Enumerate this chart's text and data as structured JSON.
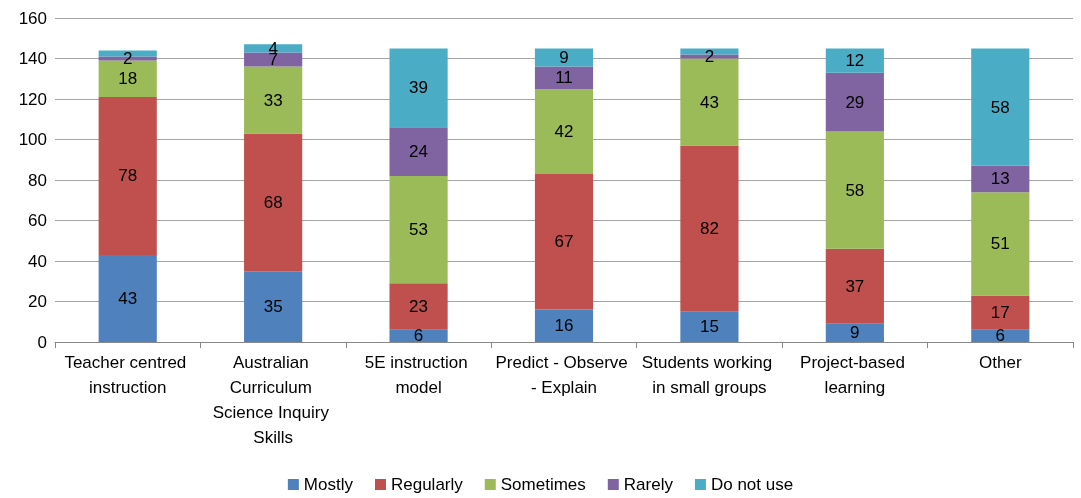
{
  "chart_data": {
    "type": "bar",
    "stacked": true,
    "categories": [
      "Teacher centred instruction",
      "Australian Curriculum Science Inquiry Skills",
      "5E instruction model",
      "Predict - Observe - Explain",
      "Students working in small groups",
      "Project-based learning",
      "Other"
    ],
    "series": [
      {
        "name": "Mostly",
        "color": "#4f81bd",
        "values": [
          43,
          35,
          6,
          16,
          15,
          9,
          6
        ],
        "value_labels": [
          "43",
          "35",
          "6",
          "16",
          "15",
          "9",
          "6"
        ]
      },
      {
        "name": "Regularly",
        "color": "#c0504d",
        "values": [
          78,
          68,
          23,
          67,
          82,
          37,
          17
        ],
        "value_labels": [
          "78",
          "68",
          "23",
          "67",
          "82",
          "37",
          "17"
        ]
      },
      {
        "name": "Sometimes",
        "color": "#9bbb59",
        "values": [
          18,
          33,
          53,
          42,
          43,
          58,
          51
        ],
        "value_labels": [
          "18",
          "33",
          "53",
          "42",
          "43",
          "58",
          "51"
        ]
      },
      {
        "name": "Rarely",
        "color": "#8064a2",
        "values": [
          2,
          7,
          24,
          11,
          2,
          29,
          13
        ],
        "value_labels": [
          "2",
          "7",
          "24",
          "11",
          "2",
          "29",
          "13"
        ]
      },
      {
        "name": "Do not use",
        "color": "#4bacc6",
        "values": [
          3,
          4,
          39,
          9,
          3,
          12,
          58
        ],
        "value_labels": [
          null,
          "4",
          "39",
          "9",
          null,
          "12",
          "58"
        ]
      }
    ],
    "ylim": [
      0,
      160
    ],
    "yticks": [
      0,
      20,
      40,
      60,
      80,
      100,
      120,
      140,
      160
    ],
    "grid": "y",
    "legend": "bottom"
  }
}
